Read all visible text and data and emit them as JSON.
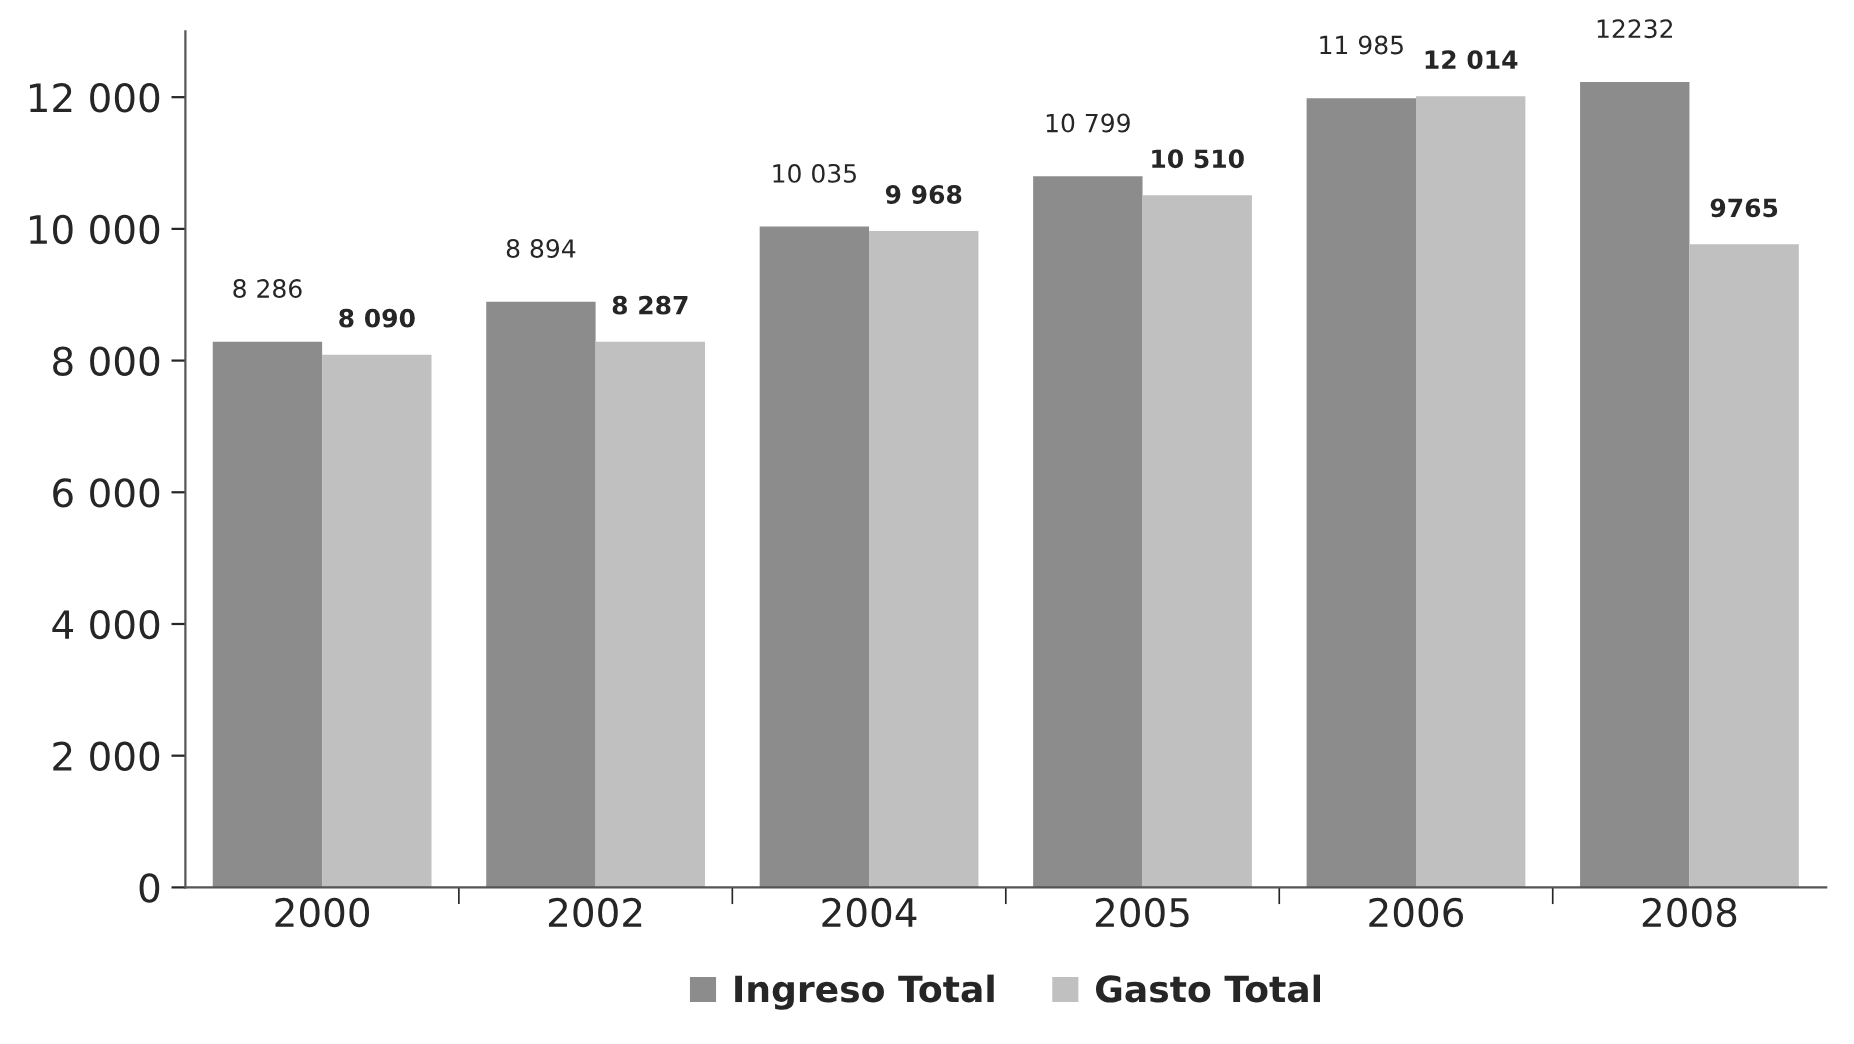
{
  "chart_data": {
    "type": "bar",
    "categories": [
      "2000",
      "2002",
      "2004",
      "2005",
      "2006",
      "2008"
    ],
    "series": [
      {
        "name": "Ingreso Total",
        "color": "#8c8c8c",
        "values": [
          8286,
          8894,
          10035,
          10799,
          11985,
          12232
        ],
        "value_labels": [
          "8 286",
          "8 894",
          "10 035",
          "10 799",
          "11 985",
          "12232"
        ]
      },
      {
        "name": "Gasto Total",
        "color": "#c0c0c0",
        "values": [
          8090,
          8287,
          9968,
          10510,
          12014,
          9765
        ],
        "value_labels": [
          "8 090",
          "8 287",
          "9 968",
          "10 510",
          "12 014",
          "9765"
        ]
      }
    ],
    "ylim": [
      0,
      13000
    ],
    "yticks": [
      0,
      {
        "value": 2000,
        "label": "2 000"
      },
      {
        "value": 4000,
        "label": "4 000"
      },
      {
        "value": 6000,
        "label": "6 000"
      },
      {
        "value": 8000,
        "label": "8 000"
      },
      {
        "value": 10000,
        "label": "10 000"
      },
      {
        "value": 12000,
        "label": "12 000"
      }
    ],
    "grid": false,
    "legend": "bottom"
  }
}
